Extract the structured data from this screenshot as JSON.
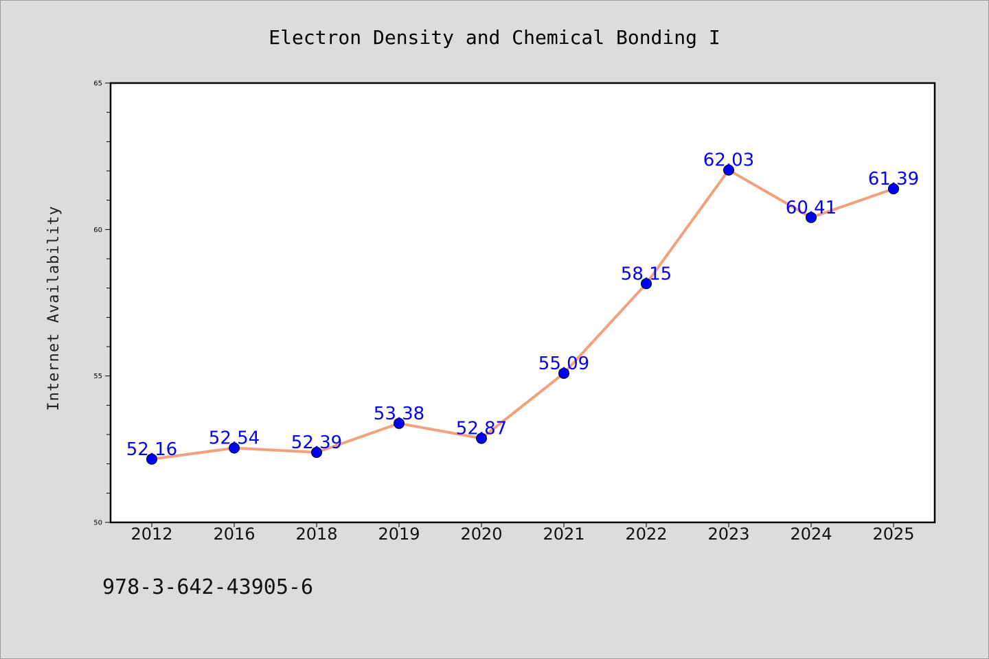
{
  "chart_data": {
    "type": "line",
    "title": "Electron Density and Chemical Bonding I",
    "ylabel": "Internet Availability",
    "xlabel": "",
    "categories": [
      "2012",
      "2016",
      "2018",
      "2019",
      "2020",
      "2021",
      "2022",
      "2023",
      "2024",
      "2025"
    ],
    "values": [
      52.16,
      52.54,
      52.39,
      53.38,
      52.87,
      55.09,
      58.15,
      62.03,
      60.41,
      61.39
    ],
    "data_labels": [
      "52.16",
      "52.54",
      "52.39",
      "53.38",
      "52.87",
      "55.09",
      "58.15",
      "62.03",
      "60.41",
      "61.39"
    ],
    "ylim": [
      50,
      65
    ],
    "yticks": [
      "50",
      "55",
      "60",
      "65"
    ],
    "grid": false,
    "legend": "none",
    "colors": {
      "line": "#f4a07e",
      "marker": "#0000ff",
      "label": "#0000ff",
      "background": "#dcdcdc",
      "plot_area": "#ffffff"
    }
  },
  "footnote": "978-3-642-43905-6"
}
